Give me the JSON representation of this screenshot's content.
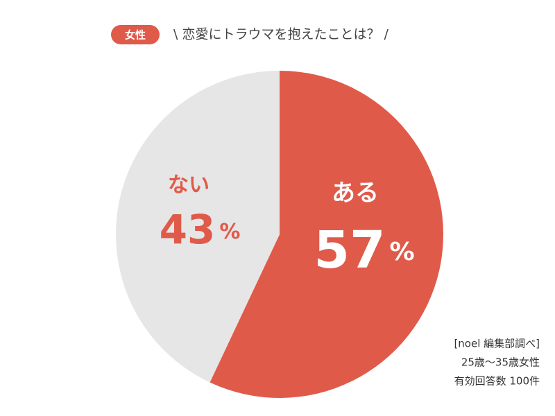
{
  "chart_data": {
    "type": "pie",
    "badge": "女性",
    "title": "\\ 恋愛にトラウマを抱えたことは？ /",
    "categories": [
      "ある",
      "ない"
    ],
    "values": [
      57,
      43
    ],
    "value_labels": [
      "57%",
      "43%"
    ],
    "colors": [
      "#e05a4a",
      "#e6e6e6"
    ],
    "notes": [
      "[noel 編集部調べ]",
      "25歳〜35歳女性",
      "有効回答数 100件"
    ]
  }
}
